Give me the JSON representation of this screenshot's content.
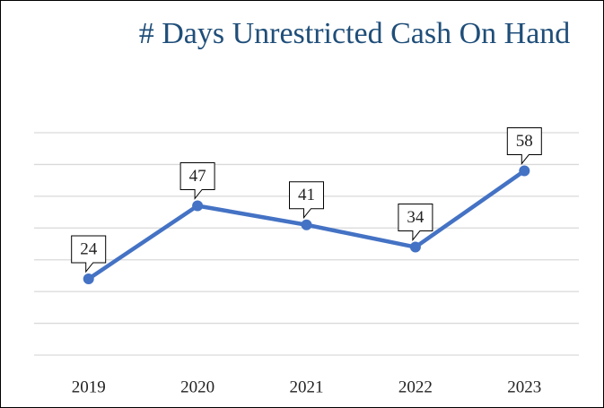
{
  "chart_data": {
    "type": "line",
    "title": "# Days Unrestricted Cash On Hand",
    "categories": [
      "2019",
      "2020",
      "2021",
      "2022",
      "2023"
    ],
    "values": [
      24,
      47,
      41,
      34,
      58
    ],
    "color": "#4472c4",
    "ylim": [
      0,
      70
    ],
    "yticks": [
      0,
      10,
      20,
      30,
      40,
      50,
      60,
      70
    ],
    "grid": true
  }
}
